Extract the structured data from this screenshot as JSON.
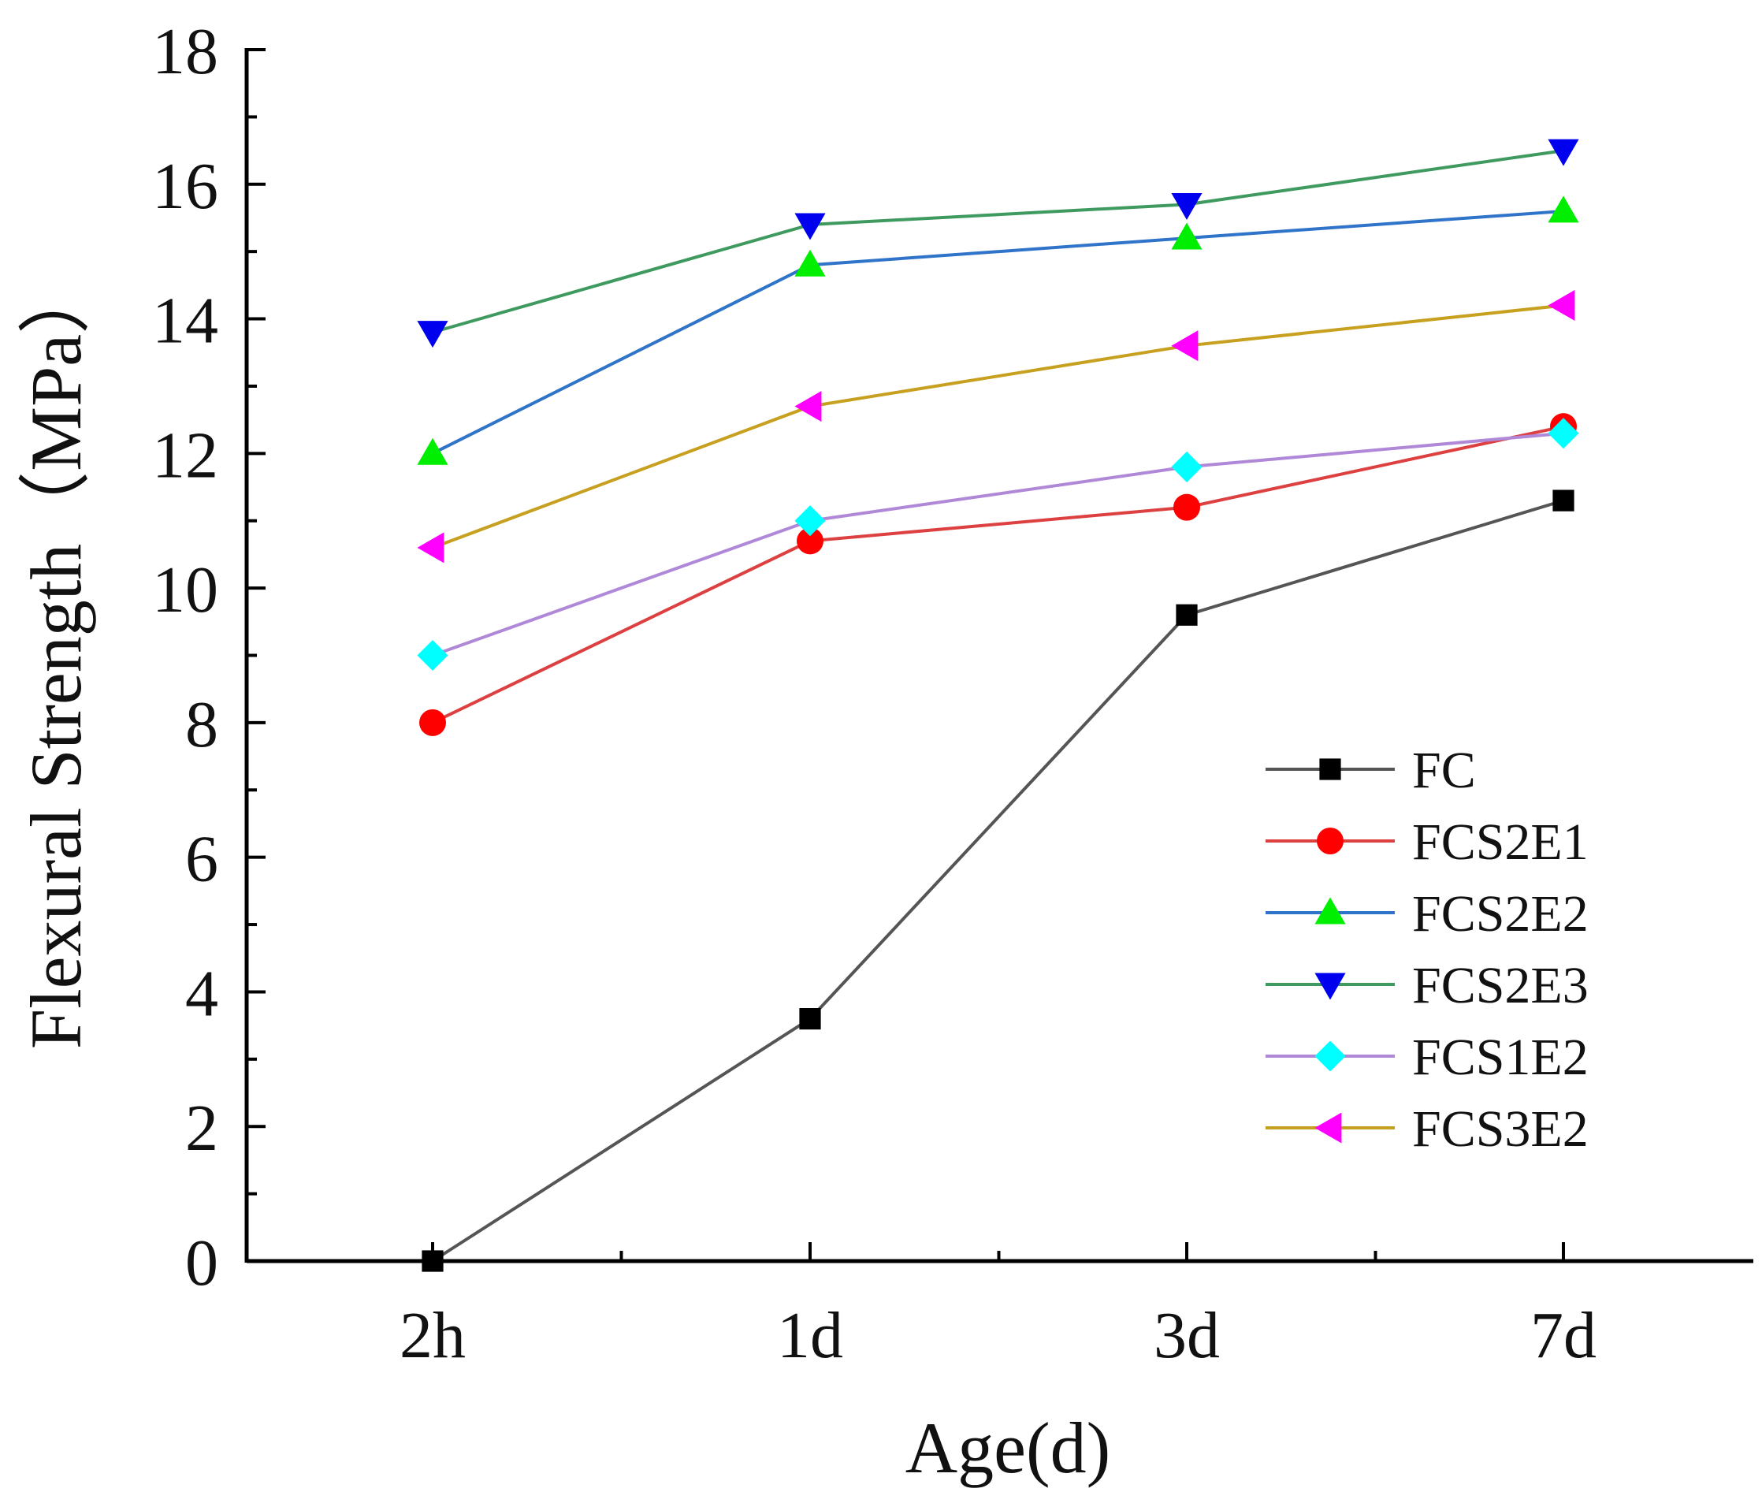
{
  "chart_data": {
    "type": "line",
    "title": "",
    "xlabel": "Age(d)",
    "ylabel": "Flexural Strength（MPa）",
    "categories": [
      "2h",
      "1d",
      "3d",
      "7d"
    ],
    "ylim": [
      0,
      18
    ],
    "yticks": [
      0,
      2,
      4,
      6,
      8,
      10,
      12,
      14,
      16,
      18
    ],
    "grid": false,
    "legend_position": "bottom-right",
    "series": [
      {
        "name": "FC",
        "values": [
          0,
          3.6,
          9.6,
          11.3
        ],
        "line_color": "#555555",
        "marker_color": "#000000",
        "marker": "square"
      },
      {
        "name": "FCS2E1",
        "values": [
          8.0,
          10.7,
          11.2,
          12.4
        ],
        "line_color": "#dd4040",
        "marker_color": "#ff0000",
        "marker": "circle"
      },
      {
        "name": "FCS2E2",
        "values": [
          12.0,
          14.8,
          15.2,
          15.6
        ],
        "line_color": "#2f74c8",
        "marker_color": "#00ee00",
        "marker": "triangle-up"
      },
      {
        "name": "FCS2E3",
        "values": [
          13.8,
          15.4,
          15.7,
          16.5
        ],
        "line_color": "#3f9a5f",
        "marker_color": "#0000ee",
        "marker": "triangle-down"
      },
      {
        "name": "FCS1E2",
        "values": [
          9.0,
          11.0,
          11.8,
          12.3
        ],
        "line_color": "#b088d8",
        "marker_color": "#00ffff",
        "marker": "diamond"
      },
      {
        "name": "FCS3E2",
        "values": [
          10.6,
          12.7,
          13.6,
          14.2
        ],
        "line_color": "#c8a020",
        "marker_color": "#ff00ff",
        "marker": "triangle-left"
      }
    ]
  }
}
